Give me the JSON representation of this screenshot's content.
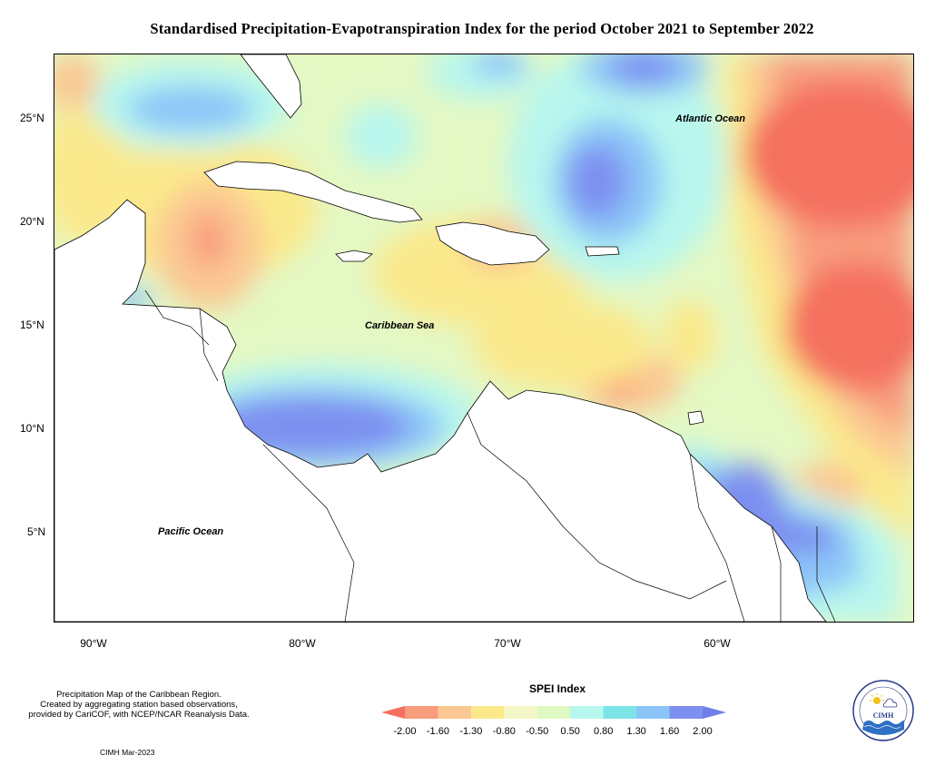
{
  "title": "Standardised Precipitation-Evapotranspiration Index for the period October 2021 to September 2022",
  "axes": {
    "latitude_labels": [
      "25°N",
      "20°N",
      "15°N",
      "10°N",
      "5°N"
    ],
    "longitude_labels": [
      "90°W",
      "80°W",
      "70°W",
      "60°W"
    ]
  },
  "map_labels": {
    "atlantic": "Atlantic Ocean",
    "caribbean": "Caribbean Sea",
    "pacific": "Pacific Ocean"
  },
  "credit": {
    "line1": "Precipitation Map of the Caribbean Region.",
    "line2": "Created by aggregating station based observations,",
    "line3": "provided by CariCOF, with NCEP/NCAR Reanalysis Data.",
    "stamp": "CIMH Mar-2023"
  },
  "legend": {
    "title": "SPEI Index",
    "ticks": [
      "-2.00",
      "-1.60",
      "-1.30",
      "-0.80",
      "-0.50",
      "0.50",
      "0.80",
      "1.30",
      "1.60",
      "2.00"
    ],
    "colors": [
      "#f4705f",
      "#f89c7e",
      "#fbc792",
      "#fbe98c",
      "#f4f7c8",
      "#dff9c2",
      "#b8f7ee",
      "#7ce4e7",
      "#8cc4f8",
      "#7d8ff0",
      "#6f7fe9"
    ]
  },
  "logo": {
    "text": "CIMH"
  }
}
